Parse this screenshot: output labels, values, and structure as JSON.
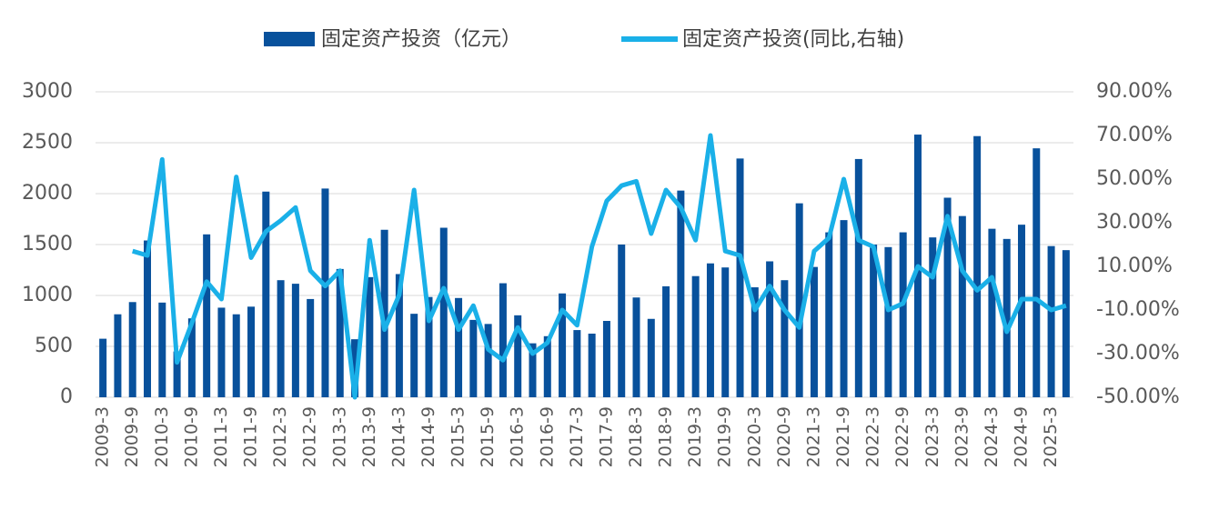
{
  "chart_data": {
    "type": "bar_line",
    "categories": [
      "2009-3",
      null,
      "2009-9",
      null,
      "2010-3",
      null,
      "2010-9",
      null,
      "2011-3",
      null,
      "2011-9",
      null,
      "2012-3",
      null,
      "2012-9",
      null,
      "2013-3",
      null,
      "2013-9",
      null,
      "2014-3",
      null,
      "2014-9",
      null,
      "2015-3",
      null,
      "2015-9",
      null,
      "2016-3",
      null,
      "2016-9",
      null,
      "2017-3",
      null,
      "2017-9",
      null,
      "2018-3",
      null,
      "2018-9",
      null,
      "2019-3",
      null,
      "2019-9",
      null,
      "2020-3",
      null,
      "2020-9",
      null,
      "2021-3",
      null,
      "2021-9",
      null,
      "2022-3",
      null,
      "2022-9",
      null,
      "2023-3",
      null,
      "2023-9",
      null,
      "2024-3",
      null,
      "2024-9",
      null,
      "2025-3",
      null
    ],
    "series": [
      {
        "name": "固定资产投资（亿元）",
        "type": "bar",
        "color": "#08519c",
        "values": [
          575,
          815,
          935,
          1540,
          930,
          450,
          775,
          1600,
          880,
          815,
          890,
          2020,
          1150,
          1115,
          965,
          2050,
          1260,
          570,
          1180,
          1645,
          1210,
          820,
          985,
          1665,
          975,
          760,
          720,
          1120,
          805,
          530,
          600,
          1020,
          660,
          625,
          750,
          1500,
          980,
          770,
          1090,
          2030,
          1190,
          1315,
          1275,
          2345,
          1080,
          1335,
          1150,
          1905,
          1280,
          1620,
          1740,
          2340,
          1500,
          1475,
          1620,
          2580,
          1570,
          1960,
          1780,
          2565,
          1655,
          1555,
          1695,
          2445,
          1485,
          1445
        ]
      },
      {
        "name": "固定资产投资(同比,右轴)",
        "type": "line",
        "axis": "y2",
        "color": "#1ab0e8",
        "values": [
          null,
          null,
          17,
          15,
          59,
          -34,
          -16,
          3,
          -5,
          51,
          14,
          26,
          31,
          37,
          8,
          1,
          8,
          -50,
          22,
          -19,
          -3,
          45,
          -15,
          0,
          -19,
          -8,
          -28,
          -33,
          -18,
          -30,
          -25,
          -10,
          -17,
          19,
          40,
          47,
          49,
          25,
          45,
          37,
          22,
          70,
          17,
          15,
          -10,
          1,
          -10,
          -18,
          17,
          23,
          50,
          22,
          19,
          -10,
          -7,
          10,
          5,
          33,
          8,
          -1,
          5,
          -20,
          -5,
          -5,
          -10,
          -8
        ]
      }
    ],
    "ylim": [
      0,
      3000
    ],
    "yticks": [
      0,
      500,
      1000,
      1500,
      2000,
      2500,
      3000
    ],
    "y2lim": [
      -50,
      90
    ],
    "y2ticks": [
      {
        "value": 90,
        "label": "90.00%"
      },
      {
        "value": 70,
        "label": "70.00%"
      },
      {
        "value": 50,
        "label": "50.00%"
      },
      {
        "value": 30,
        "label": "30.00%"
      },
      {
        "value": 10,
        "label": "10.00%"
      },
      {
        "value": -10,
        "label": "-10.00%"
      },
      {
        "value": -30,
        "label": "-30.00%"
      },
      {
        "value": -50,
        "label": "-50.00%"
      }
    ],
    "grid": true,
    "legend": "top"
  }
}
